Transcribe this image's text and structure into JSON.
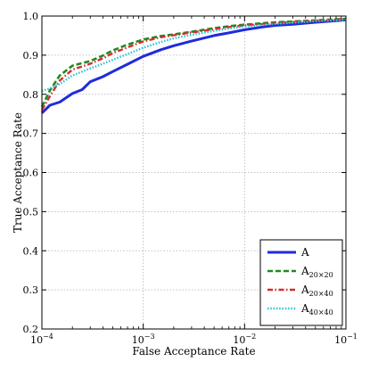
{
  "chart_data": {
    "type": "line",
    "xlabel": "False Acceptance Rate",
    "ylabel": "True Acceptance Rate",
    "xscale": "log",
    "xlim": [
      0.0001,
      0.1
    ],
    "ylim": [
      0.2,
      1.0
    ],
    "x_ticks": [
      {
        "value": 0.0001,
        "base": "10",
        "exp": "−4"
      },
      {
        "value": 0.001,
        "base": "10",
        "exp": "−3"
      },
      {
        "value": 0.01,
        "base": "10",
        "exp": "−2"
      },
      {
        "value": 0.1,
        "base": "10",
        "exp": "−1"
      }
    ],
    "y_ticks": [
      0.2,
      0.3,
      0.4,
      0.5,
      0.6,
      0.7,
      0.8,
      0.9,
      1.0
    ],
    "y_tick_labels": [
      "0.2",
      "0.3",
      "0.4",
      "0.5",
      "0.6",
      "0.7",
      "0.8",
      "0.9",
      "1.0"
    ],
    "grid": true,
    "legend_position": "bottom-right",
    "series": [
      {
        "name": "A",
        "sub": "",
        "color": "#1f2bdc",
        "style": "solid",
        "x": [
          0.0001,
          0.00012,
          0.00015,
          0.0002,
          0.00025,
          0.0003,
          0.0004,
          0.0005,
          0.0007,
          0.001,
          0.0015,
          0.002,
          0.003,
          0.005,
          0.007,
          0.01,
          0.015,
          0.02,
          0.03,
          0.05,
          0.07,
          0.1
        ],
        "y": [
          0.752,
          0.772,
          0.78,
          0.802,
          0.812,
          0.832,
          0.845,
          0.858,
          0.877,
          0.897,
          0.914,
          0.924,
          0.936,
          0.95,
          0.957,
          0.965,
          0.972,
          0.976,
          0.979,
          0.984,
          0.987,
          0.99
        ]
      },
      {
        "name": "A",
        "sub": "20×20",
        "color": "#1e8a1e",
        "style": "dashed",
        "x": [
          0.0001,
          0.00012,
          0.00015,
          0.0002,
          0.0003,
          0.0004,
          0.0005,
          0.0007,
          0.001,
          0.0015,
          0.002,
          0.003,
          0.005,
          0.007,
          0.01,
          0.02,
          0.03,
          0.05,
          0.1
        ],
        "y": [
          0.768,
          0.81,
          0.848,
          0.873,
          0.885,
          0.899,
          0.912,
          0.927,
          0.94,
          0.949,
          0.953,
          0.96,
          0.969,
          0.974,
          0.978,
          0.984,
          0.986,
          0.989,
          0.993
        ]
      },
      {
        "name": "A",
        "sub": "20×40",
        "color": "#d62c2c",
        "style": "dashdot",
        "x": [
          0.0001,
          0.00012,
          0.00015,
          0.0002,
          0.0003,
          0.0004,
          0.0005,
          0.0007,
          0.001,
          0.0015,
          0.002,
          0.003,
          0.005,
          0.007,
          0.01,
          0.02,
          0.03,
          0.05,
          0.1
        ],
        "y": [
          0.76,
          0.795,
          0.835,
          0.863,
          0.878,
          0.892,
          0.905,
          0.92,
          0.935,
          0.946,
          0.951,
          0.958,
          0.966,
          0.972,
          0.976,
          0.982,
          0.985,
          0.988,
          0.992
        ]
      },
      {
        "name": "A",
        "sub": "40×40",
        "color": "#27c4d4",
        "style": "dotted",
        "x": [
          0.0001,
          0.00012,
          0.00015,
          0.0002,
          0.0003,
          0.0004,
          0.0005,
          0.0007,
          0.001,
          0.0015,
          0.002,
          0.003,
          0.005,
          0.007,
          0.01,
          0.02,
          0.03,
          0.05,
          0.1
        ],
        "y": [
          0.808,
          0.815,
          0.826,
          0.848,
          0.866,
          0.878,
          0.888,
          0.903,
          0.919,
          0.934,
          0.943,
          0.952,
          0.962,
          0.968,
          0.973,
          0.98,
          0.983,
          0.987,
          0.99
        ]
      }
    ]
  }
}
